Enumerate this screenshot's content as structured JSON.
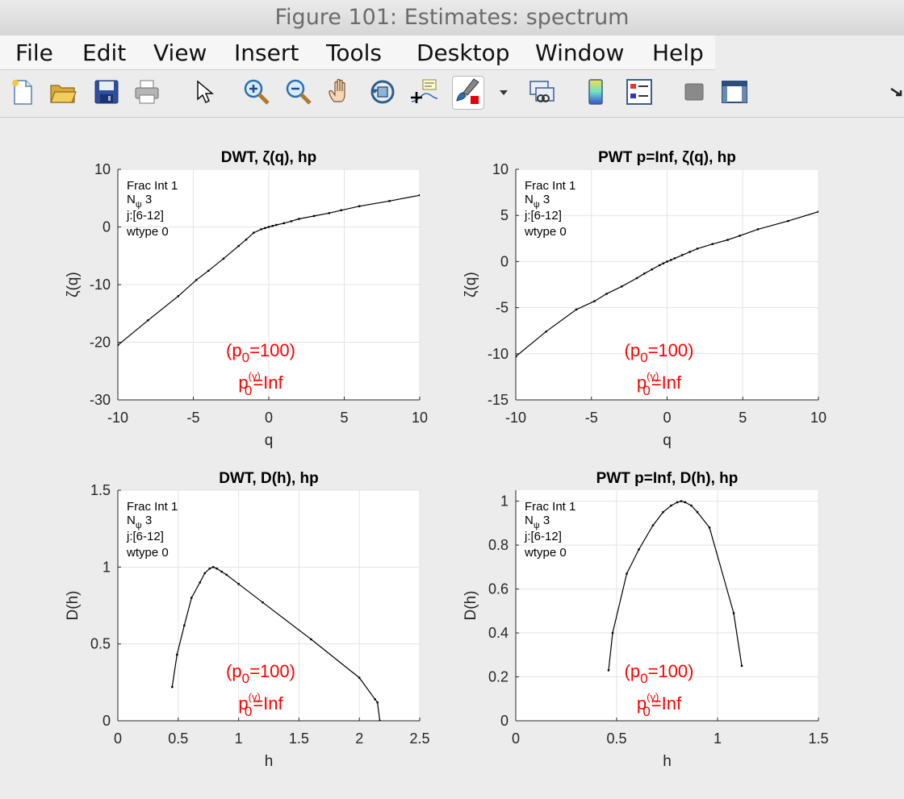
{
  "window": {
    "title": "Figure 101: Estimates: spectrum"
  },
  "menu": [
    "File",
    "Edit",
    "View",
    "Insert",
    "Tools",
    "Desktop",
    "Window",
    "Help"
  ],
  "toolbar": [
    "new-figure",
    "open-file",
    "save",
    "print",
    "pointer",
    "zoom-in",
    "zoom-out",
    "pan",
    "rotate-3d",
    "data-cursor",
    "brush",
    "brush-dropdown",
    "link-plot",
    "colorbar",
    "legend",
    "hide-plot-tools",
    "show-plot-tools",
    "dock-arrow"
  ],
  "annotation": {
    "info_lines": [
      "Frac Int 1",
      "N",
      "ψ",
      " 3",
      "j:[6-12]",
      "wtype 0"
    ],
    "p0_main": "(p",
    "p0_sub": "0",
    "p0_val": "=100)",
    "pg_p": "p",
    "pg_sup": "(γ)",
    "pg_sub": "0",
    "pg_val": "=Inf",
    "color": "#ff0000"
  },
  "chart_data": [
    {
      "type": "line",
      "title": "DWT, ζ(q), hp",
      "xlabel": "q",
      "ylabel": "ζ(q)",
      "xlim": [
        -10,
        10
      ],
      "ylim": [
        -30,
        10
      ],
      "xticks": [
        -10,
        -5,
        0,
        5,
        10
      ],
      "yticks": [
        -30,
        -20,
        -10,
        0,
        10
      ],
      "grid": true,
      "series": [
        {
          "x": [
            -10,
            -8,
            -6,
            -4.8,
            -4,
            -3,
            -2,
            -1.5,
            -1,
            -0.5,
            -0.25,
            0,
            0.25,
            0.5,
            1,
            1.5,
            2,
            3,
            4,
            4.8,
            6,
            8,
            10
          ],
          "y": [
            -20.5,
            -16.2,
            -12,
            -9.2,
            -7.6,
            -5.5,
            -3.3,
            -2.2,
            -1.0,
            -0.4,
            -0.2,
            0,
            0.18,
            0.35,
            0.65,
            1.0,
            1.4,
            1.9,
            2.4,
            2.9,
            3.6,
            4.5,
            5.5
          ]
        }
      ]
    },
    {
      "type": "line",
      "title": "PWT p=Inf, ζ(q), hp",
      "xlabel": "q",
      "ylabel": "ζ(q)",
      "xlim": [
        -10,
        10
      ],
      "ylim": [
        -15,
        10
      ],
      "xticks": [
        -10,
        -5,
        0,
        5,
        10
      ],
      "yticks": [
        -15,
        -10,
        -5,
        0,
        5,
        10
      ],
      "grid": true,
      "series": [
        {
          "x": [
            -10,
            -8,
            -6,
            -4.8,
            -4,
            -3,
            -2,
            -1.5,
            -1,
            -0.5,
            -0.25,
            0,
            0.25,
            0.5,
            1,
            1.5,
            2,
            3,
            4,
            4.8,
            6,
            8,
            10
          ],
          "y": [
            -10.3,
            -7.6,
            -5.2,
            -4.3,
            -3.5,
            -2.7,
            -1.8,
            -1.3,
            -0.85,
            -0.4,
            -0.2,
            0,
            0.17,
            0.35,
            0.7,
            1.05,
            1.4,
            1.9,
            2.35,
            2.8,
            3.5,
            4.4,
            5.4
          ]
        }
      ]
    },
    {
      "type": "line",
      "title": "DWT, D(h), hp",
      "xlabel": "h",
      "ylabel": "D(h)",
      "xlim": [
        0,
        2.5
      ],
      "ylim": [
        0,
        1.5
      ],
      "xticks": [
        0,
        0.5,
        1,
        1.5,
        2,
        2.5
      ],
      "yticks": [
        0,
        0.5,
        1,
        1.5
      ],
      "grid": true,
      "series": [
        {
          "x": [
            0.45,
            0.49,
            0.55,
            0.61,
            0.68,
            0.72,
            0.76,
            0.79,
            0.82,
            0.86,
            0.9,
            1.0,
            1.2,
            1.6,
            2.0,
            2.13,
            2.15,
            2.17
          ],
          "y": [
            0.22,
            0.43,
            0.62,
            0.8,
            0.9,
            0.96,
            0.99,
            1.0,
            0.99,
            0.97,
            0.95,
            0.89,
            0.77,
            0.53,
            0.28,
            0.14,
            0.12,
            0.0
          ]
        }
      ]
    },
    {
      "type": "line",
      "title": "PWT p=Inf, D(h), hp",
      "xlabel": "h",
      "ylabel": "D(h)",
      "xlim": [
        0,
        1.5
      ],
      "ylim": [
        0,
        1.05
      ],
      "xticks": [
        0,
        0.5,
        1,
        1.5
      ],
      "yticks": [
        0,
        0.2,
        0.4,
        0.6,
        0.8,
        1
      ],
      "grid": true,
      "series": [
        {
          "x": [
            0.46,
            0.48,
            0.55,
            0.61,
            0.68,
            0.73,
            0.77,
            0.8,
            0.82,
            0.84,
            0.87,
            0.9,
            0.96,
            1.08,
            1.12
          ],
          "y": [
            0.23,
            0.4,
            0.67,
            0.78,
            0.89,
            0.95,
            0.98,
            0.995,
            1.0,
            0.995,
            0.98,
            0.95,
            0.88,
            0.49,
            0.25
          ]
        }
      ]
    }
  ]
}
